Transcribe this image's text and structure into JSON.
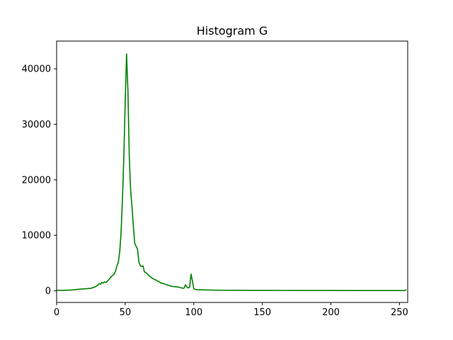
{
  "chart_data": {
    "type": "line",
    "title": "Histogram G",
    "xlabel": "",
    "ylabel": "",
    "xlim": [
      0,
      256
    ],
    "ylim": [
      -2100,
      45000
    ],
    "grid": false,
    "legend": "none",
    "x_ticks": [
      0,
      50,
      100,
      150,
      200,
      250
    ],
    "y_ticks": [
      0,
      10000,
      20000,
      30000,
      40000
    ],
    "series": [
      {
        "color": "#008000",
        "points": [
          [
            0,
            100
          ],
          [
            5,
            80
          ],
          [
            10,
            120
          ],
          [
            15,
            250
          ],
          [
            20,
            350
          ],
          [
            25,
            450
          ],
          [
            28,
            700
          ],
          [
            30,
            1000
          ],
          [
            31,
            1300
          ],
          [
            32,
            1200
          ],
          [
            33,
            1500
          ],
          [
            34,
            1400
          ],
          [
            35,
            1600
          ],
          [
            36,
            1500
          ],
          [
            38,
            2000
          ],
          [
            40,
            2600
          ],
          [
            42,
            3000
          ],
          [
            43,
            3600
          ],
          [
            44,
            4500
          ],
          [
            45,
            5200
          ],
          [
            46,
            7000
          ],
          [
            47,
            10500
          ],
          [
            48,
            16500
          ],
          [
            49,
            24000
          ],
          [
            50,
            34000
          ],
          [
            51,
            42700
          ],
          [
            52,
            36000
          ],
          [
            53,
            24000
          ],
          [
            54,
            18000
          ],
          [
            55,
            15000
          ],
          [
            56,
            11500
          ],
          [
            57,
            8500
          ],
          [
            58,
            8000
          ],
          [
            59,
            7500
          ],
          [
            60,
            5200
          ],
          [
            61,
            4500
          ],
          [
            62,
            4400
          ],
          [
            63,
            4500
          ],
          [
            64,
            3400
          ],
          [
            65,
            3300
          ],
          [
            66,
            3100
          ],
          [
            67,
            2800
          ],
          [
            68,
            2600
          ],
          [
            70,
            2200
          ],
          [
            72,
            2000
          ],
          [
            74,
            1700
          ],
          [
            75,
            1600
          ],
          [
            76,
            1400
          ],
          [
            78,
            1300
          ],
          [
            80,
            1100
          ],
          [
            82,
            950
          ],
          [
            84,
            800
          ],
          [
            86,
            750
          ],
          [
            88,
            700
          ],
          [
            90,
            600
          ],
          [
            92,
            450
          ],
          [
            93,
            500
          ],
          [
            94,
            1100
          ],
          [
            95,
            700
          ],
          [
            96,
            500
          ],
          [
            97,
            700
          ],
          [
            98,
            3000
          ],
          [
            99,
            1800
          ],
          [
            100,
            400
          ],
          [
            101,
            250
          ],
          [
            103,
            200
          ],
          [
            105,
            180
          ],
          [
            110,
            150
          ],
          [
            120,
            100
          ],
          [
            140,
            80
          ],
          [
            160,
            70
          ],
          [
            180,
            60
          ],
          [
            200,
            60
          ],
          [
            220,
            50
          ],
          [
            240,
            50
          ],
          [
            250,
            50
          ],
          [
            254,
            60
          ],
          [
            255,
            250
          ]
        ]
      }
    ]
  }
}
